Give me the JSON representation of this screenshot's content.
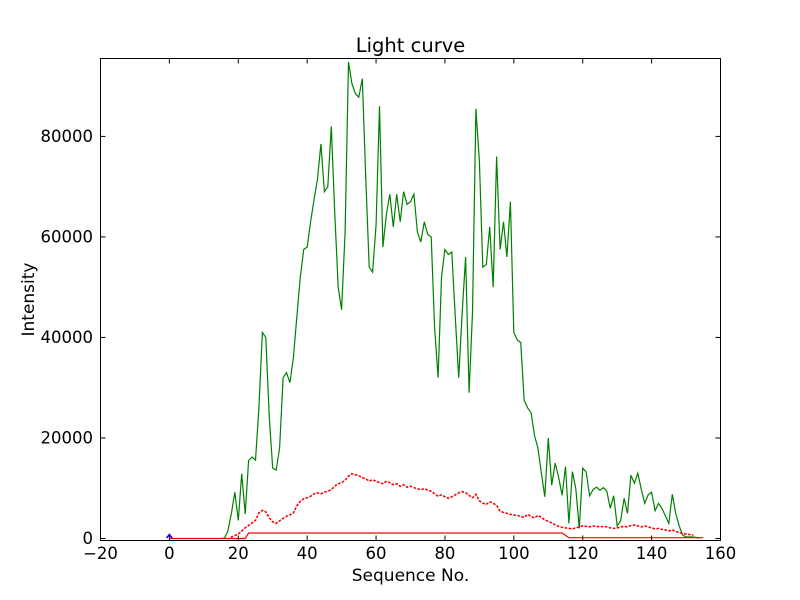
{
  "figure": {
    "background": "#ffffff",
    "title": "Light curve"
  },
  "chart_data": {
    "type": "line",
    "title": "Light curve",
    "xlabel": "Sequence No.",
    "ylabel": "Intensity",
    "xlim": [
      -20,
      160
    ],
    "ylim": [
      -400,
      95500
    ],
    "grid": false,
    "legend": null,
    "axis_color": "#000000",
    "xticks": {
      "values": [
        -20,
        0,
        20,
        40,
        60,
        80,
        100,
        120,
        140,
        160
      ],
      "labels": [
        "−20",
        "0",
        "20",
        "40",
        "60",
        "80",
        "100",
        "120",
        "140",
        "160"
      ]
    },
    "yticks": {
      "values": [
        0,
        20000,
        40000,
        60000,
        80000
      ],
      "labels": [
        "0",
        "20000",
        "40000",
        "60000",
        "80000"
      ]
    },
    "series": [
      {
        "name": "main-light-curve",
        "color": "#008000",
        "style": "solid",
        "width": 1.2,
        "points": [
          [
            15,
            0
          ],
          [
            16,
            100
          ],
          [
            17,
            1500
          ],
          [
            18,
            5000
          ],
          [
            19,
            9200
          ],
          [
            20,
            3600
          ],
          [
            21,
            12900
          ],
          [
            22,
            4900
          ],
          [
            23,
            15500
          ],
          [
            24,
            16200
          ],
          [
            25,
            15600
          ],
          [
            26,
            26000
          ],
          [
            27,
            41000
          ],
          [
            28,
            40000
          ],
          [
            29,
            24000
          ],
          [
            30,
            14000
          ],
          [
            31,
            13600
          ],
          [
            32,
            18000
          ],
          [
            33,
            32000
          ],
          [
            34,
            33000
          ],
          [
            35,
            31000
          ],
          [
            36,
            36000
          ],
          [
            37,
            44000
          ],
          [
            38,
            52000
          ],
          [
            39,
            57500
          ],
          [
            40,
            58000
          ],
          [
            41,
            63000
          ],
          [
            42,
            67500
          ],
          [
            43,
            71500
          ],
          [
            44,
            78500
          ],
          [
            45,
            69000
          ],
          [
            46,
            70000
          ],
          [
            47,
            82000
          ],
          [
            48,
            65000
          ],
          [
            49,
            50000
          ],
          [
            50,
            45500
          ],
          [
            51,
            61000
          ],
          [
            52,
            94800
          ],
          [
            53,
            90500
          ],
          [
            54,
            88500
          ],
          [
            55,
            87800
          ],
          [
            56,
            91500
          ],
          [
            57,
            72000
          ],
          [
            58,
            54000
          ],
          [
            59,
            53000
          ],
          [
            60,
            62500
          ],
          [
            61,
            86000
          ],
          [
            62,
            58000
          ],
          [
            63,
            64500
          ],
          [
            64,
            68500
          ],
          [
            65,
            62000
          ],
          [
            66,
            68500
          ],
          [
            67,
            63000
          ],
          [
            68,
            69000
          ],
          [
            69,
            66500
          ],
          [
            70,
            67000
          ],
          [
            71,
            68500
          ],
          [
            72,
            61000
          ],
          [
            73,
            59000
          ],
          [
            74,
            63000
          ],
          [
            75,
            60500
          ],
          [
            76,
            60000
          ],
          [
            77,
            42000
          ],
          [
            78,
            32000
          ],
          [
            79,
            52000
          ],
          [
            80,
            57500
          ],
          [
            81,
            56500
          ],
          [
            82,
            57000
          ],
          [
            83,
            44000
          ],
          [
            84,
            32000
          ],
          [
            85,
            45000
          ],
          [
            86,
            56000
          ],
          [
            87,
            29000
          ],
          [
            88,
            45000
          ],
          [
            89,
            85500
          ],
          [
            90,
            75000
          ],
          [
            91,
            54000
          ],
          [
            92,
            54500
          ],
          [
            93,
            62000
          ],
          [
            94,
            50000
          ],
          [
            95,
            76000
          ],
          [
            96,
            57500
          ],
          [
            97,
            63000
          ],
          [
            98,
            56000
          ],
          [
            99,
            67000
          ],
          [
            100,
            41000
          ],
          [
            101,
            39500
          ],
          [
            102,
            39000
          ],
          [
            103,
            27500
          ],
          [
            104,
            26000
          ],
          [
            105,
            25000
          ],
          [
            106,
            20500
          ],
          [
            107,
            18000
          ],
          [
            108,
            13000
          ],
          [
            109,
            8300
          ],
          [
            110,
            20000
          ],
          [
            111,
            10600
          ],
          [
            112,
            15000
          ],
          [
            113,
            12200
          ],
          [
            114,
            8600
          ],
          [
            115,
            14300
          ],
          [
            116,
            3000
          ],
          [
            117,
            13300
          ],
          [
            118,
            9900
          ],
          [
            119,
            2000
          ],
          [
            120,
            14000
          ],
          [
            121,
            13200
          ],
          [
            122,
            8500
          ],
          [
            123,
            9700
          ],
          [
            124,
            10200
          ],
          [
            125,
            9600
          ],
          [
            126,
            10100
          ],
          [
            127,
            9400
          ],
          [
            128,
            6000
          ],
          [
            129,
            8500
          ],
          [
            130,
            2500
          ],
          [
            131,
            3500
          ],
          [
            132,
            8000
          ],
          [
            133,
            5000
          ],
          [
            134,
            12600
          ],
          [
            135,
            11000
          ],
          [
            136,
            13000
          ],
          [
            137,
            9800
          ],
          [
            138,
            7000
          ],
          [
            139,
            8700
          ],
          [
            140,
            9200
          ],
          [
            141,
            5500
          ],
          [
            142,
            7000
          ],
          [
            143,
            6000
          ],
          [
            144,
            4500
          ],
          [
            145,
            3000
          ],
          [
            146,
            8800
          ],
          [
            147,
            5000
          ],
          [
            148,
            2500
          ],
          [
            149,
            700
          ],
          [
            150,
            300
          ],
          [
            151,
            300
          ],
          [
            152,
            300
          ],
          [
            153,
            200
          ],
          [
            154,
            100
          ]
        ]
      },
      {
        "name": "secondary-dotted-curve",
        "color": "#ff0000",
        "style": "dotted",
        "width": 1.6,
        "points": [
          [
            18,
            300
          ],
          [
            19,
            600
          ],
          [
            20,
            900
          ],
          [
            21,
            1500
          ],
          [
            22,
            2100
          ],
          [
            23,
            2600
          ],
          [
            24,
            3100
          ],
          [
            25,
            3600
          ],
          [
            26,
            5100
          ],
          [
            27,
            5600
          ],
          [
            28,
            5300
          ],
          [
            29,
            4100
          ],
          [
            30,
            3300
          ],
          [
            31,
            3000
          ],
          [
            32,
            3500
          ],
          [
            33,
            4000
          ],
          [
            34,
            4400
          ],
          [
            35,
            4700
          ],
          [
            36,
            5100
          ],
          [
            37,
            6500
          ],
          [
            38,
            7400
          ],
          [
            39,
            7900
          ],
          [
            40,
            8100
          ],
          [
            41,
            8400
          ],
          [
            42,
            8900
          ],
          [
            43,
            9100
          ],
          [
            44,
            8900
          ],
          [
            45,
            9200
          ],
          [
            46,
            9400
          ],
          [
            47,
            9700
          ],
          [
            48,
            10400
          ],
          [
            49,
            10900
          ],
          [
            50,
            11100
          ],
          [
            51,
            11600
          ],
          [
            52,
            12400
          ],
          [
            53,
            12900
          ],
          [
            54,
            12700
          ],
          [
            55,
            12500
          ],
          [
            56,
            12100
          ],
          [
            57,
            11900
          ],
          [
            58,
            11400
          ],
          [
            59,
            11700
          ],
          [
            60,
            11400
          ],
          [
            61,
            11100
          ],
          [
            62,
            10900
          ],
          [
            63,
            11400
          ],
          [
            64,
            11100
          ],
          [
            65,
            10700
          ],
          [
            66,
            10900
          ],
          [
            67,
            10400
          ],
          [
            68,
            10700
          ],
          [
            69,
            10200
          ],
          [
            70,
            10400
          ],
          [
            71,
            10100
          ],
          [
            72,
            9900
          ],
          [
            73,
            9700
          ],
          [
            74,
            9900
          ],
          [
            75,
            9600
          ],
          [
            76,
            9400
          ],
          [
            77,
            8900
          ],
          [
            78,
            8400
          ],
          [
            79,
            8700
          ],
          [
            80,
            8300
          ],
          [
            81,
            8000
          ],
          [
            82,
            8300
          ],
          [
            83,
            8700
          ],
          [
            84,
            9100
          ],
          [
            85,
            9300
          ],
          [
            86,
            9100
          ],
          [
            87,
            8600
          ],
          [
            88,
            8100
          ],
          [
            89,
            8800
          ],
          [
            90,
            7500
          ],
          [
            91,
            7000
          ],
          [
            92,
            6800
          ],
          [
            93,
            7300
          ],
          [
            94,
            7000
          ],
          [
            95,
            6600
          ],
          [
            96,
            5400
          ],
          [
            97,
            5200
          ],
          [
            98,
            5000
          ],
          [
            99,
            4800
          ],
          [
            100,
            4700
          ],
          [
            101,
            4600
          ],
          [
            102,
            4400
          ],
          [
            103,
            4200
          ],
          [
            104,
            4800
          ],
          [
            105,
            4400
          ],
          [
            106,
            4100
          ],
          [
            107,
            4600
          ],
          [
            108,
            4200
          ],
          [
            109,
            3700
          ],
          [
            110,
            3400
          ],
          [
            111,
            3100
          ],
          [
            112,
            2700
          ],
          [
            113,
            2400
          ],
          [
            114,
            2200
          ],
          [
            115,
            2100
          ],
          [
            116,
            2000
          ],
          [
            117,
            1900
          ],
          [
            118,
            2100
          ],
          [
            119,
            2300
          ],
          [
            120,
            2500
          ],
          [
            121,
            2400
          ],
          [
            122,
            2300
          ],
          [
            123,
            2500
          ],
          [
            124,
            2400
          ],
          [
            125,
            2300
          ],
          [
            126,
            2400
          ],
          [
            127,
            2300
          ],
          [
            128,
            2100
          ],
          [
            129,
            2000
          ],
          [
            130,
            2100
          ],
          [
            131,
            2300
          ],
          [
            132,
            2400
          ],
          [
            133,
            2300
          ],
          [
            134,
            2600
          ],
          [
            135,
            2700
          ],
          [
            136,
            2500
          ],
          [
            137,
            2300
          ],
          [
            138,
            2500
          ],
          [
            139,
            2300
          ],
          [
            140,
            2100
          ],
          [
            141,
            1900
          ],
          [
            142,
            2000
          ],
          [
            143,
            1800
          ],
          [
            144,
            1700
          ],
          [
            145,
            1500
          ],
          [
            146,
            1700
          ],
          [
            147,
            1400
          ],
          [
            148,
            1200
          ],
          [
            149,
            1000
          ],
          [
            150,
            900
          ],
          [
            151,
            800
          ],
          [
            152,
            700
          ]
        ]
      },
      {
        "name": "baseline-solid-red",
        "color": "#ff0000",
        "style": "solid",
        "width": 1.2,
        "points": [
          [
            0,
            0
          ],
          [
            22,
            0
          ],
          [
            23,
            1100
          ],
          [
            114,
            1100
          ],
          [
            116,
            150
          ],
          [
            155,
            150
          ]
        ]
      },
      {
        "name": "blue-marker-at-zero",
        "color": "#0000ff",
        "style": "solid",
        "width": 1.5,
        "points": [
          [
            -0.8,
            100
          ],
          [
            0,
            800
          ],
          [
            0.8,
            100
          ]
        ]
      }
    ]
  }
}
